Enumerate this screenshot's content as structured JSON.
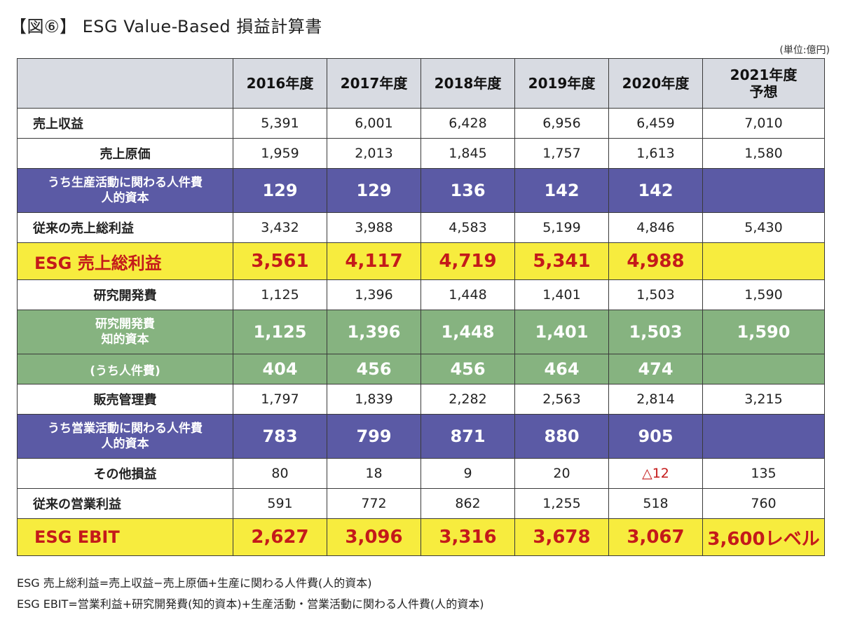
{
  "title": "【図⑥】 ESG Value-Based 損益計算書",
  "unit": "(単位:億円)",
  "headers": [
    "",
    "2016年度",
    "2017年度",
    "2018年度",
    "2019年度",
    "2020年度",
    "2021年度\n予想"
  ],
  "header_2021": {
    "line1": "2021年度",
    "line2": "予想"
  },
  "rows": [
    {
      "style": "plain",
      "label": "売上収益",
      "values": [
        "5,391",
        "6,001",
        "6,428",
        "6,956",
        "6,459",
        "7,010"
      ]
    },
    {
      "style": "plain-indent",
      "label": "売上原価",
      "values": [
        "1,959",
        "2,013",
        "1,845",
        "1,757",
        "1,613",
        "1,580"
      ]
    },
    {
      "style": "purple",
      "label": "うち生産活動に関わる人件費",
      "label2": "人的資本",
      "values": [
        "129",
        "129",
        "136",
        "142",
        "142",
        ""
      ]
    },
    {
      "style": "plain",
      "label": "従来の売上総利益",
      "values": [
        "3,432",
        "3,988",
        "4,583",
        "5,199",
        "4,846",
        "5,430"
      ]
    },
    {
      "style": "yellow",
      "label": "ESG 売上総利益",
      "values": [
        "3,561",
        "4,117",
        "4,719",
        "5,341",
        "4,988",
        ""
      ]
    },
    {
      "style": "plain-indent",
      "label": "研究開発費",
      "values": [
        "1,125",
        "1,396",
        "1,448",
        "1,401",
        "1,503",
        "1,590"
      ]
    },
    {
      "style": "green",
      "label": "研究開発費",
      "label2": "知的資本",
      "values": [
        "1,125",
        "1,396",
        "1,448",
        "1,401",
        "1,503",
        "1,590"
      ]
    },
    {
      "style": "green2",
      "label": "(うち人件費)",
      "values": [
        "404",
        "456",
        "456",
        "464",
        "474",
        ""
      ]
    },
    {
      "style": "plain-indent",
      "label": "販売管理費",
      "values": [
        "1,797",
        "1,839",
        "2,282",
        "2,563",
        "2,814",
        "3,215"
      ]
    },
    {
      "style": "purple",
      "label": "うち営業活動に関わる人件費",
      "label2": "人的資本",
      "values": [
        "783",
        "799",
        "871",
        "880",
        "905",
        ""
      ]
    },
    {
      "style": "plain-indent",
      "label": "その他損益",
      "values": [
        "80",
        "18",
        "9",
        "20",
        "△12",
        "135"
      ]
    },
    {
      "style": "plain",
      "label": "従来の営業利益",
      "values": [
        "591",
        "772",
        "862",
        "1,255",
        "518",
        "760"
      ]
    },
    {
      "style": "yellow",
      "label": "ESG EBIT",
      "values": [
        "2,627",
        "3,096",
        "3,316",
        "3,678",
        "3,067",
        "3,600レベル"
      ]
    }
  ],
  "notes": [
    "ESG 売上総利益=売上収益−売上原価+生産に関わる人件費(人的資本)",
    "ESG EBIT=営業利益+研究開発費(知的資本)+生産活動・営業活動に関わる人件費(人的資本)"
  ]
}
